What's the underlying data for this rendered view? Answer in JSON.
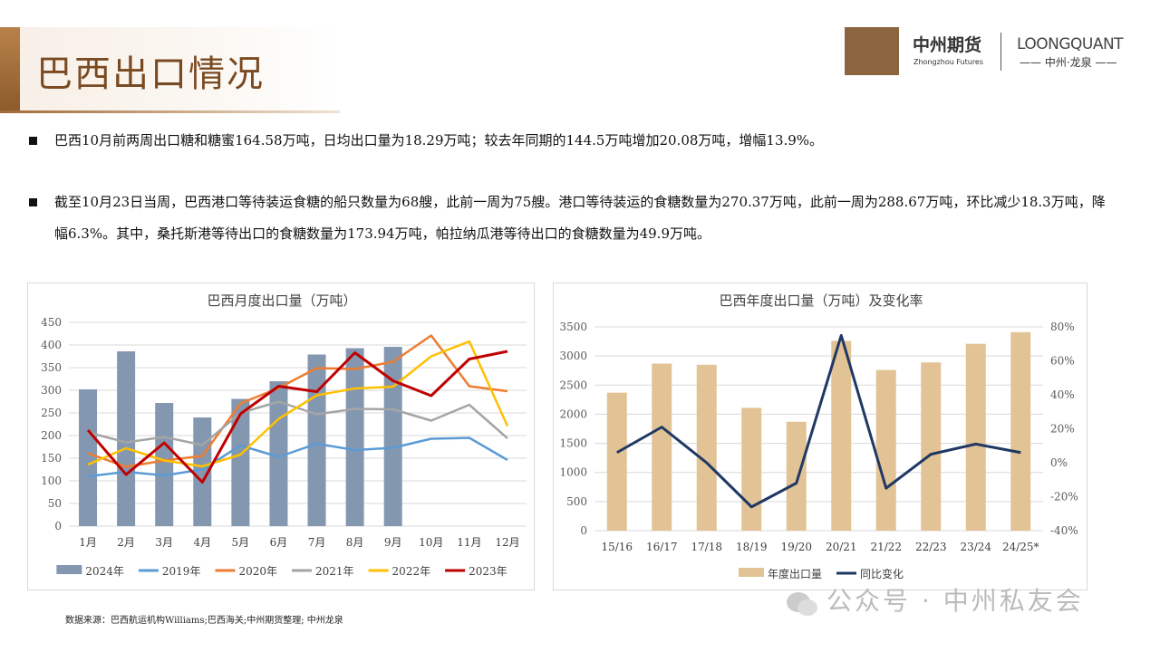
{
  "header": {
    "title": "巴西出口情况",
    "logo_cn": "中州期货",
    "logo_en": "Zhongzhou Futures",
    "brand2": "LOONGQUANT",
    "brand2_sub": "—— 中州·龙泉 ——"
  },
  "bullets": [
    "巴西10月前两周出口糖和糖蜜164.58万吨，日均出口量为18.29万吨；较去年同期的144.5万吨增加20.08万吨，增幅13.9%。",
    "截至10月23日当周，巴西港口等待装运食糖的船只数量为68艘，此前一周为75艘。港口等待装运的食糖数量为270.37万吨，此前一周为288.67万吨，环比减少18.3万吨，降幅6.3%。其中，桑托斯港等待出口的食糖数量为173.94万吨，帕拉纳瓜港等待出口的食糖数量为49.9万吨。"
  ],
  "source": "数据来源：巴西航运机构Williams;巴西海关;中州期货整理; 中州龙泉",
  "watermark": "公众号 · 中州私友会",
  "chart_data": [
    {
      "type": "bar+line",
      "title": "巴西月度出口量（万吨）",
      "categories": [
        "1月",
        "2月",
        "3月",
        "4月",
        "5月",
        "6月",
        "7月",
        "8月",
        "9月",
        "10月",
        "11月",
        "12月"
      ],
      "ylim": [
        0,
        450
      ],
      "yticks": [
        0,
        50,
        100,
        150,
        200,
        250,
        300,
        350,
        400,
        450
      ],
      "grid": true,
      "legend": "bottom",
      "series": [
        {
          "name": "2024年",
          "kind": "bar",
          "color": "#8497b0",
          "values": [
            302,
            386,
            272,
            240,
            281,
            320,
            379,
            393,
            396,
            null,
            null,
            null
          ]
        },
        {
          "name": "2019年",
          "kind": "line",
          "color": "#5b9bd5",
          "values": [
            110,
            120,
            112,
            125,
            178,
            153,
            182,
            168,
            173,
            193,
            195,
            146
          ]
        },
        {
          "name": "2020年",
          "kind": "line",
          "color": "#ed7d31",
          "values": [
            161,
            131,
            145,
            155,
            271,
            305,
            349,
            347,
            363,
            421,
            309,
            298
          ]
        },
        {
          "name": "2021年",
          "kind": "line",
          "color": "#a5a5a5",
          "values": [
            207,
            185,
            197,
            179,
            250,
            275,
            247,
            259,
            258,
            233,
            268,
            194
          ]
        },
        {
          "name": "2022年",
          "kind": "line",
          "color": "#ffc000",
          "values": [
            136,
            172,
            145,
            132,
            158,
            237,
            289,
            304,
            308,
            375,
            408,
            221
          ]
        },
        {
          "name": "2023年",
          "kind": "line",
          "color": "#c00000",
          "values": [
            212,
            114,
            184,
            97,
            248,
            309,
            297,
            383,
            321,
            288,
            369,
            386
          ]
        }
      ]
    },
    {
      "type": "bar+line",
      "title": "巴西年度出口量（万吨）及变化率",
      "categories": [
        "15/16",
        "16/17",
        "17/18",
        "18/19",
        "19/20",
        "20/21",
        "21/22",
        "22/23",
        "23/24",
        "24/25*"
      ],
      "ylim": [
        0,
        3500
      ],
      "yticks": [
        0,
        500,
        1000,
        1500,
        2000,
        2500,
        3000,
        3500
      ],
      "y2lim": [
        -40,
        80
      ],
      "y2ticks": [
        "-40%",
        "-20%",
        "0%",
        "20%",
        "40%",
        "60%",
        "80%"
      ],
      "grid": true,
      "legend": "bottom",
      "series": [
        {
          "name": "年度出口量",
          "kind": "bar",
          "color": "#e2c395",
          "values": [
            2370,
            2870,
            2850,
            2110,
            1870,
            3260,
            2760,
            2890,
            3210,
            3410
          ]
        },
        {
          "name": "同比变化",
          "kind": "line",
          "axis": "right",
          "color": "#1f3864",
          "values": [
            6,
            21,
            0,
            -26,
            -12,
            75,
            -15,
            5,
            11,
            6
          ]
        }
      ]
    }
  ]
}
